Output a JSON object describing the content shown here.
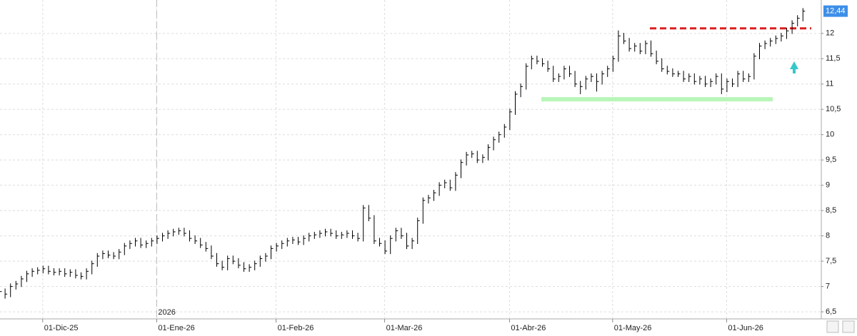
{
  "chart_data": {
    "type": "ohlc",
    "categories": [
      null,
      null,
      null,
      null,
      null,
      null,
      null,
      null,
      "01-Dic-25",
      null,
      null,
      null,
      null,
      null,
      null,
      null,
      null,
      null,
      null,
      null,
      null,
      null,
      null,
      null,
      null,
      null,
      null,
      null,
      null,
      "01-Ene-26",
      null,
      null,
      null,
      null,
      null,
      null,
      null,
      null,
      null,
      null,
      null,
      null,
      null,
      null,
      null,
      null,
      null,
      null,
      null,
      null,
      null,
      "01-Feb-26",
      null,
      null,
      null,
      null,
      null,
      null,
      null,
      null,
      null,
      null,
      null,
      null,
      null,
      null,
      null,
      null,
      null,
      null,
      null,
      "01-Mar-26",
      null,
      null,
      null,
      null,
      null,
      null,
      null,
      null,
      null,
      null,
      null,
      null,
      null,
      null,
      null,
      null,
      null,
      null,
      null,
      null,
      null,
      null,
      "01-Abr-26",
      null,
      null,
      null,
      null,
      null,
      null,
      null,
      null,
      null,
      null,
      null,
      null,
      null,
      null,
      null,
      null,
      null,
      null,
      "01-May-26",
      null,
      null,
      null,
      null,
      null,
      null,
      null,
      null,
      null,
      null,
      null,
      null,
      null,
      null,
      null,
      null,
      null,
      null,
      null,
      null,
      "01-Jun-26",
      null,
      null,
      null,
      null,
      null,
      null,
      null,
      null,
      null,
      null,
      null,
      null,
      null,
      null
    ],
    "close": [
      6.9,
      6.85,
      7.0,
      7.05,
      7.15,
      7.25,
      7.3,
      7.32,
      7.35,
      7.3,
      7.28,
      7.3,
      7.25,
      7.28,
      7.22,
      7.2,
      7.3,
      7.45,
      7.6,
      7.65,
      7.62,
      7.6,
      7.68,
      7.8,
      7.85,
      7.9,
      7.82,
      7.85,
      7.9,
      7.95,
      8.0,
      8.05,
      8.08,
      8.1,
      8.05,
      7.95,
      7.9,
      7.82,
      7.75,
      7.6,
      7.45,
      7.38,
      7.55,
      7.5,
      7.42,
      7.35,
      7.38,
      7.45,
      7.55,
      7.6,
      7.75,
      7.8,
      7.85,
      7.9,
      7.92,
      7.88,
      7.95,
      8.0,
      8.02,
      8.05,
      8.08,
      8.05,
      8.0,
      8.02,
      8.05,
      8.0,
      7.95,
      8.55,
      8.35,
      7.9,
      7.85,
      7.7,
      7.95,
      8.1,
      8.0,
      7.8,
      7.9,
      8.3,
      8.7,
      8.75,
      8.85,
      9.0,
      9.05,
      8.95,
      9.2,
      9.45,
      9.6,
      9.62,
      9.5,
      9.55,
      9.75,
      9.9,
      10.0,
      10.15,
      10.45,
      10.8,
      10.95,
      11.35,
      11.5,
      11.45,
      11.4,
      11.3,
      11.1,
      11.15,
      11.3,
      11.2,
      11.0,
      10.95,
      11.1,
      11.15,
      11.05,
      11.2,
      11.3,
      11.5,
      11.95,
      11.85,
      11.7,
      11.75,
      11.65,
      11.8,
      11.6,
      11.45,
      11.3,
      11.25,
      11.2,
      11.2,
      11.1,
      11.15,
      11.05,
      11.1,
      11.0,
      11.05,
      11.15,
      10.9,
      11.05,
      11.0,
      11.2,
      11.1,
      11.15,
      11.55,
      11.75,
      11.8,
      11.85,
      11.9,
      11.95,
      12.05,
      12.2,
      12.3,
      12.44
    ],
    "high": [
      6.98,
      6.96,
      7.06,
      7.11,
      7.21,
      7.31,
      7.36,
      7.38,
      7.41,
      7.41,
      7.36,
      7.36,
      7.36,
      7.34,
      7.34,
      7.28,
      7.36,
      7.51,
      7.66,
      7.71,
      7.71,
      7.68,
      7.74,
      7.86,
      7.91,
      7.96,
      7.96,
      7.91,
      7.96,
      8.01,
      8.06,
      8.11,
      8.14,
      8.16,
      8.16,
      8.11,
      8.01,
      7.96,
      7.88,
      7.81,
      7.66,
      7.51,
      7.61,
      7.61,
      7.56,
      7.48,
      7.44,
      7.51,
      7.61,
      7.66,
      7.81,
      7.86,
      7.91,
      7.96,
      7.98,
      7.98,
      8.01,
      8.06,
      8.08,
      8.11,
      8.14,
      8.14,
      8.11,
      8.08,
      8.11,
      8.11,
      8.06,
      8.61,
      8.61,
      8.41,
      7.96,
      7.91,
      8.01,
      8.16,
      8.16,
      8.06,
      7.96,
      8.36,
      8.76,
      8.81,
      8.91,
      9.06,
      9.11,
      9.11,
      9.26,
      9.51,
      9.66,
      9.68,
      9.68,
      9.61,
      9.81,
      9.96,
      10.06,
      10.21,
      10.51,
      10.86,
      11.01,
      11.41,
      11.56,
      11.56,
      11.51,
      11.46,
      11.36,
      11.21,
      11.36,
      11.36,
      11.26,
      11.06,
      11.16,
      11.21,
      11.21,
      11.26,
      11.36,
      11.56,
      12.06,
      12.01,
      11.91,
      11.81,
      11.81,
      11.86,
      11.86,
      11.66,
      11.51,
      11.36,
      11.31,
      11.26,
      11.26,
      11.21,
      11.21,
      11.16,
      11.16,
      11.11,
      11.21,
      11.21,
      11.11,
      11.11,
      11.26,
      11.26,
      11.21,
      11.61,
      11.81,
      11.86,
      11.91,
      11.96,
      12.01,
      12.11,
      12.26,
      12.36,
      12.5
    ],
    "low": [
      6.82,
      6.76,
      6.79,
      6.94,
      6.99,
      7.09,
      7.19,
      7.24,
      7.26,
      7.24,
      7.22,
      7.22,
      7.19,
      7.19,
      7.16,
      7.14,
      7.14,
      7.24,
      7.39,
      7.54,
      7.56,
      7.54,
      7.54,
      7.62,
      7.74,
      7.79,
      7.76,
      7.76,
      7.79,
      7.84,
      7.89,
      7.94,
      7.99,
      8.02,
      7.99,
      7.89,
      7.84,
      7.76,
      7.69,
      7.54,
      7.39,
      7.32,
      7.32,
      7.44,
      7.36,
      7.29,
      7.29,
      7.32,
      7.39,
      7.49,
      7.54,
      7.69,
      7.74,
      7.79,
      7.84,
      7.82,
      7.82,
      7.89,
      7.94,
      7.96,
      7.99,
      7.99,
      7.94,
      7.94,
      7.96,
      7.94,
      7.89,
      7.89,
      8.29,
      7.84,
      7.79,
      7.64,
      7.64,
      7.89,
      7.94,
      7.74,
      7.74,
      7.84,
      8.24,
      8.64,
      8.69,
      8.79,
      8.94,
      8.89,
      8.89,
      9.14,
      9.39,
      9.54,
      9.44,
      9.44,
      9.49,
      9.69,
      9.84,
      9.94,
      10.09,
      10.39,
      10.74,
      10.89,
      11.29,
      11.39,
      11.34,
      11.24,
      11.04,
      11.04,
      11.09,
      11.14,
      10.94,
      10.8,
      10.89,
      11.04,
      10.85,
      10.99,
      11.14,
      11.24,
      11.44,
      11.79,
      11.64,
      11.64,
      11.59,
      11.59,
      11.54,
      11.39,
      11.24,
      11.19,
      11.14,
      11.14,
      11.04,
      11.04,
      10.99,
      10.99,
      10.94,
      10.94,
      10.99,
      10.8,
      10.84,
      10.94,
      10.94,
      11.04,
      11.04,
      11.09,
      11.49,
      11.69,
      11.74,
      11.79,
      11.84,
      11.89,
      11.99,
      12.14,
      12.24
    ],
    "color": "#000000",
    "ylim": [
      6.36,
      12.66
    ],
    "yticks": [
      {
        "value": 6.5,
        "label": "6,5"
      },
      7,
      {
        "value": 7.5,
        "label": "7,5"
      },
      8,
      {
        "value": 8.5,
        "label": "8,5"
      },
      9,
      {
        "value": 9.5,
        "label": "9,5"
      },
      10,
      {
        "value": 10.5,
        "label": "10,5"
      },
      11,
      {
        "value": 11.5,
        "label": "11,5"
      },
      12
    ],
    "grid": true,
    "year_label": "2026",
    "last_value": {
      "value": 12.44,
      "label": "12,44",
      "color": "#3d8ee8"
    },
    "hlines": [
      {
        "value": 12.1,
        "color": "#dd1f1f",
        "dash": true
      },
      {
        "value": 10.7,
        "color": "#b8f5b8",
        "dash": false
      }
    ]
  }
}
